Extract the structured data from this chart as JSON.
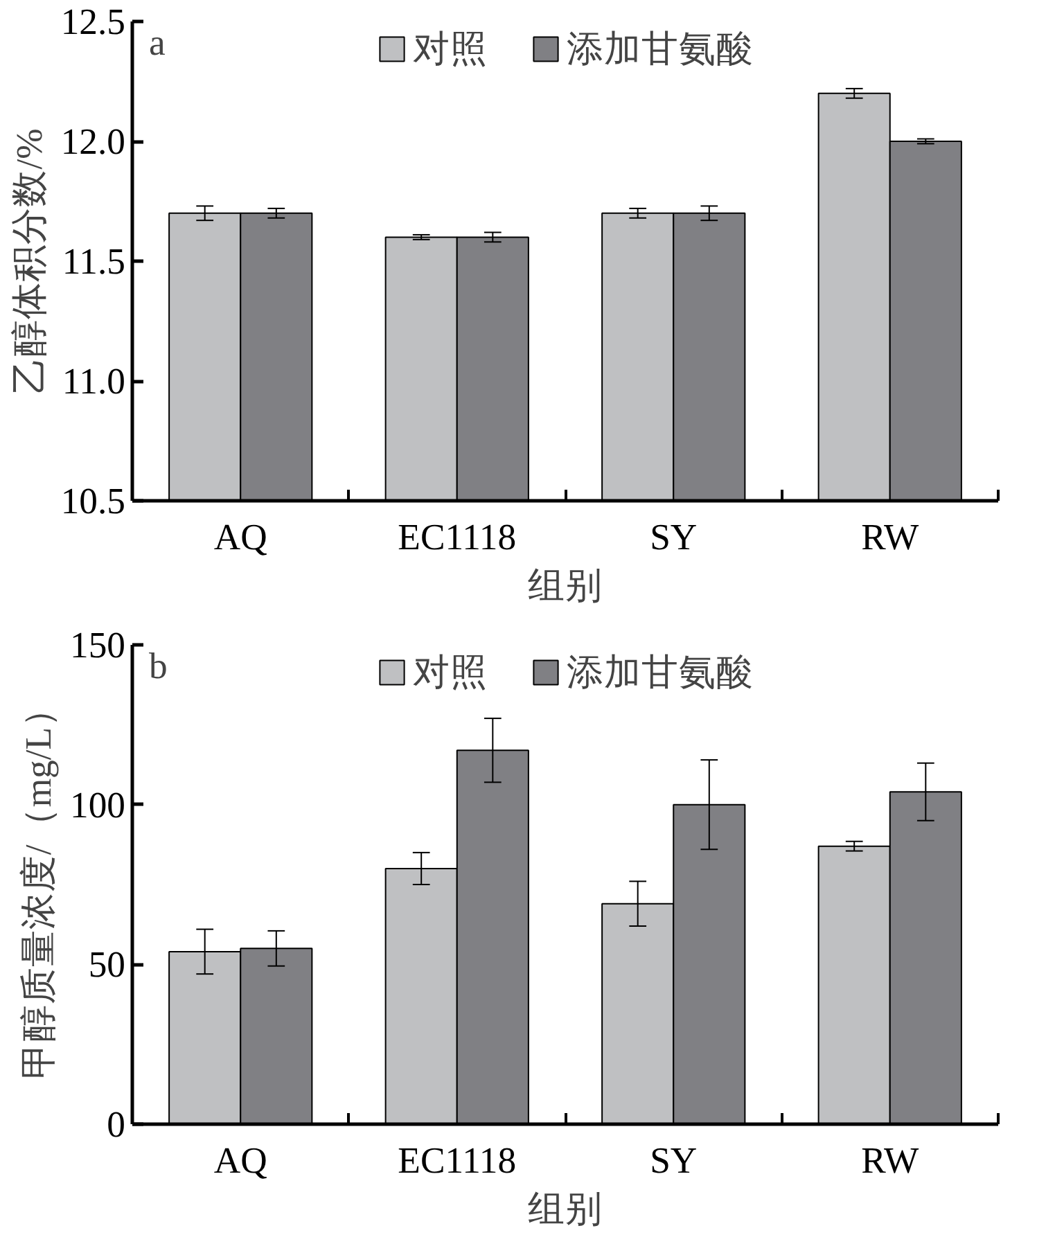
{
  "chart_data": [
    {
      "type": "bar",
      "categories": [
        "AQ",
        "EC1118",
        "SY",
        "RW"
      ],
      "xlabel": "组别",
      "ylabel": "乙醇体积分数/%",
      "annotations": [
        "a"
      ],
      "series": [
        {
          "name": "对照",
          "color": "#bfc0c2",
          "values": [
            11.7,
            11.6,
            11.7,
            12.2
          ],
          "errors": [
            0.03,
            0.01,
            0.02,
            0.02
          ]
        },
        {
          "name": "添加甘氨酸",
          "color": "#808084",
          "values": [
            11.7,
            11.6,
            11.7,
            12.0
          ],
          "errors": [
            0.02,
            0.02,
            0.03,
            0.01
          ]
        }
      ],
      "ylim": [
        10.5,
        12.5
      ],
      "yticks": [
        {
          "value": 10.5,
          "label": "10.5"
        },
        {
          "value": 11,
          "label": "11.0"
        },
        {
          "value": 11.5,
          "label": "11.5"
        },
        {
          "value": 12,
          "label": "12.0"
        },
        {
          "value": 12.5,
          "label": "12.5"
        }
      ],
      "legend": "top",
      "grid": false
    },
    {
      "type": "bar",
      "categories": [
        "AQ",
        "EC1118",
        "SY",
        "RW"
      ],
      "xlabel": "组别",
      "ylabel": "甲醇质量浓度/（mg/L）",
      "annotations": [
        "b"
      ],
      "series": [
        {
          "name": "对照",
          "color": "#bfc0c2",
          "values": [
            54,
            80,
            69,
            87
          ],
          "errors": [
            7,
            5,
            7,
            1.5
          ]
        },
        {
          "name": "添加甘氨酸",
          "color": "#808084",
          "values": [
            55,
            117,
            100,
            104
          ],
          "errors": [
            5.5,
            10,
            14,
            9
          ]
        }
      ],
      "ylim": [
        0,
        150
      ],
      "yticks": [
        0,
        50,
        100,
        150
      ],
      "legend": "top",
      "grid": false
    }
  ]
}
